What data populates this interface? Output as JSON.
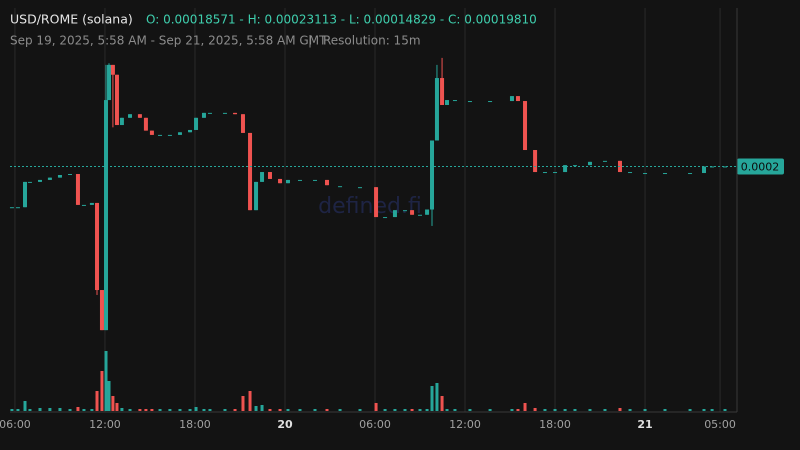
{
  "chart_data": {
    "type": "candlestick",
    "title": "USD/ROME (solana)",
    "ohlc_text": "O: 0.00018571 - H: 0.00023113 - L: 0.00014829 - C: 0.00019810",
    "subtitle": "Sep 19, 2025, 5:58 AM - Sep 21, 2025, 5:58 AM GMT",
    "separator": "|",
    "resolution": "Resolution: 15m",
    "watermark": "defined.fi",
    "last_price_label": "0.0002",
    "up_color": "#26a69a",
    "down_color": "#ef5350",
    "xlim": [
      5.67,
      54.13
    ],
    "ylim": [
      0.000124,
      0.0002457
    ],
    "vlim": [
      0,
      60
    ],
    "xticks": [
      {
        "value": 6,
        "label": "06:00"
      },
      {
        "value": 12,
        "label": "12:00"
      },
      {
        "value": 18,
        "label": "18:00"
      },
      {
        "value": 24,
        "label": "20"
      },
      {
        "value": 30,
        "label": "06:00"
      },
      {
        "value": 36,
        "label": "12:00"
      },
      {
        "value": 42,
        "label": "18:00"
      },
      {
        "value": 48,
        "label": "21"
      },
      {
        "value": 53,
        "label": "05:00"
      }
    ],
    "x": [
      5.8,
      6.2,
      6.67,
      7.0,
      7.67,
      8.33,
      9.0,
      9.67,
      10.2,
      10.6,
      11.13,
      11.47,
      11.8,
      12.07,
      12.27,
      12.53,
      12.8,
      13.13,
      13.67,
      14.33,
      14.73,
      15.13,
      15.67,
      16.33,
      17.0,
      17.67,
      18.07,
      18.6,
      19.0,
      20.0,
      20.67,
      21.2,
      21.67,
      22.07,
      22.47,
      23.0,
      23.67,
      24.2,
      25.0,
      26.0,
      26.8,
      27.67,
      29.0,
      30.07,
      30.67,
      31.33,
      32.0,
      32.47,
      33.0,
      33.47,
      33.8,
      34.13,
      34.47,
      34.8,
      35.33,
      36.33,
      37.67,
      39.13,
      39.53,
      40.0,
      40.67,
      41.33,
      42.0,
      42.67,
      43.33,
      44.33,
      45.33,
      46.33,
      47.0,
      48.0,
      49.33,
      51.0,
      51.93,
      52.47,
      53.33
    ],
    "open": [
      0.0001857,
      0.0001857,
      0.0001857,
      0.0001934,
      0.0001934,
      0.000194,
      0.0001947,
      0.0001958,
      0.0001958,
      0.0001864,
      0.0001864,
      0.000187,
      0.0001605,
      0.0001483,
      0.0002183,
      0.000229,
      0.000226,
      0.0002107,
      0.0002129,
      0.000214,
      0.0002129,
      0.000209,
      0.0002077,
      0.0002077,
      0.0002077,
      0.0002085,
      0.0002092,
      0.0002129,
      0.0002144,
      0.0002144,
      0.0002144,
      0.000214,
      0.0002083,
      0.0001848,
      0.0001934,
      0.0001964,
      0.0001943,
      0.000193,
      0.000194,
      0.000194,
      0.000194,
      0.0001921,
      0.0001918,
      0.0001918,
      0.0001827,
      0.0001827,
      0.0001848,
      0.0001848,
      0.0001834,
      0.0001834,
      0.000185,
      0.000206,
      0.000225,
      0.0002168,
      0.0002183,
      0.000218,
      0.000218,
      0.000218,
      0.0002195,
      0.000218,
      0.0002031,
      0.0001964,
      0.0001964,
      0.0001964,
      0.0001985,
      0.0001985,
      0.0001998,
      0.0001998,
      0.0001964,
      0.0001961,
      0.0001961,
      0.0001961,
      0.0001961,
      0.0001981,
      0.0001981
    ],
    "high": [
      0.0001857,
      0.0001857,
      0.0001934,
      0.0001934,
      0.000194,
      0.0001947,
      0.0001955,
      0.0001958,
      0.0001958,
      0.0001864,
      0.000187,
      0.000187,
      0.0001605,
      0.000229,
      0.0002295,
      0.000229,
      0.000226,
      0.0002129,
      0.000214,
      0.000214,
      0.0002129,
      0.000209,
      0.0002077,
      0.0002077,
      0.0002085,
      0.0002092,
      0.0002129,
      0.0002144,
      0.0002144,
      0.0002144,
      0.0002144,
      0.000214,
      0.0002083,
      0.0001934,
      0.0001964,
      0.0001964,
      0.0001943,
      0.000194,
      0.000194,
      0.000194,
      0.000194,
      0.0001921,
      0.0001918,
      0.0001918,
      0.0001827,
      0.0001848,
      0.0001848,
      0.0001848,
      0.0001834,
      0.000185,
      0.000206,
      0.000229,
      0.00023113,
      0.0002183,
      0.0002183,
      0.000218,
      0.000218,
      0.0002195,
      0.0002195,
      0.000218,
      0.0002031,
      0.0001964,
      0.0001964,
      0.0001985,
      0.0001985,
      0.0001995,
      0.0001998,
      0.0001998,
      0.0001964,
      0.0001961,
      0.0001961,
      0.0001961,
      0.0001981,
      0.0001981,
      0.0001981
    ],
    "low": [
      0.0001857,
      0.0001857,
      0.0001857,
      0.0001934,
      0.0001934,
      0.000194,
      0.0001947,
      0.0001958,
      0.0001864,
      0.0001864,
      0.0001864,
      0.000159,
      0.00014829,
      0.0001483,
      0.0002183,
      0.00021,
      0.0002107,
      0.0002107,
      0.0002129,
      0.0002129,
      0.000209,
      0.0002077,
      0.0002077,
      0.0002077,
      0.0002077,
      0.0002085,
      0.0002092,
      0.0002129,
      0.0002144,
      0.0002144,
      0.000214,
      0.0002083,
      0.0001848,
      0.0001848,
      0.0001934,
      0.0001943,
      0.000193,
      0.000193,
      0.000194,
      0.000194,
      0.0001924,
      0.0001921,
      0.0001918,
      0.0001827,
      0.0001827,
      0.0001827,
      0.0001848,
      0.0001834,
      0.0001834,
      0.0001834,
      0.00018,
      0.000206,
      0.0002168,
      0.0002168,
      0.0002183,
      0.000218,
      0.000218,
      0.000218,
      0.000218,
      0.0002031,
      0.0001964,
      0.0001964,
      0.0001964,
      0.0001964,
      0.0001985,
      0.0001985,
      0.0001998,
      0.0001964,
      0.0001964,
      0.0001961,
      0.0001961,
      0.0001961,
      0.0001961,
      0.0001981,
      0.0001981
    ],
    "close": [
      0.0001857,
      0.0001857,
      0.0001934,
      0.0001934,
      0.000194,
      0.0001947,
      0.0001955,
      0.0001958,
      0.0001864,
      0.0001864,
      0.000187,
      0.0001605,
      0.0001483,
      0.0002183,
      0.000229,
      0.000226,
      0.0002107,
      0.0002129,
      0.000214,
      0.0002129,
      0.000209,
      0.0002077,
      0.0002077,
      0.0002077,
      0.0002085,
      0.0002092,
      0.0002129,
      0.0002144,
      0.0002144,
      0.0002144,
      0.000214,
      0.0002083,
      0.0001848,
      0.0001934,
      0.0001964,
      0.0001943,
      0.000193,
      0.000194,
      0.000194,
      0.000194,
      0.0001924,
      0.0001921,
      0.0001918,
      0.0001827,
      0.0001827,
      0.0001848,
      0.0001848,
      0.0001834,
      0.0001834,
      0.000185,
      0.000206,
      0.000225,
      0.0002168,
      0.0002183,
      0.0002183,
      0.000218,
      0.000218,
      0.0002195,
      0.000218,
      0.0002031,
      0.0001964,
      0.0001964,
      0.0001964,
      0.0001985,
      0.0001985,
      0.0001995,
      0.0001998,
      0.0001964,
      0.0001964,
      0.0001961,
      0.0001961,
      0.0001961,
      0.0001981,
      0.0001981,
      0.0001981
    ],
    "volume": [
      2,
      2,
      10,
      2,
      3,
      3,
      3,
      2,
      4,
      2,
      2,
      20,
      40,
      60,
      30,
      15,
      8,
      3,
      2,
      2,
      2,
      2,
      2,
      2,
      2,
      2,
      4,
      2,
      2,
      2,
      2,
      15,
      20,
      5,
      6,
      2,
      2,
      2,
      2,
      2,
      2,
      2,
      2,
      8,
      2,
      2,
      2,
      2,
      2,
      2,
      25,
      28,
      15,
      2,
      2,
      2,
      2,
      2,
      2,
      8,
      3,
      2,
      2,
      2,
      2,
      2,
      2,
      3,
      2,
      2,
      2,
      2,
      2,
      2,
      2
    ]
  }
}
